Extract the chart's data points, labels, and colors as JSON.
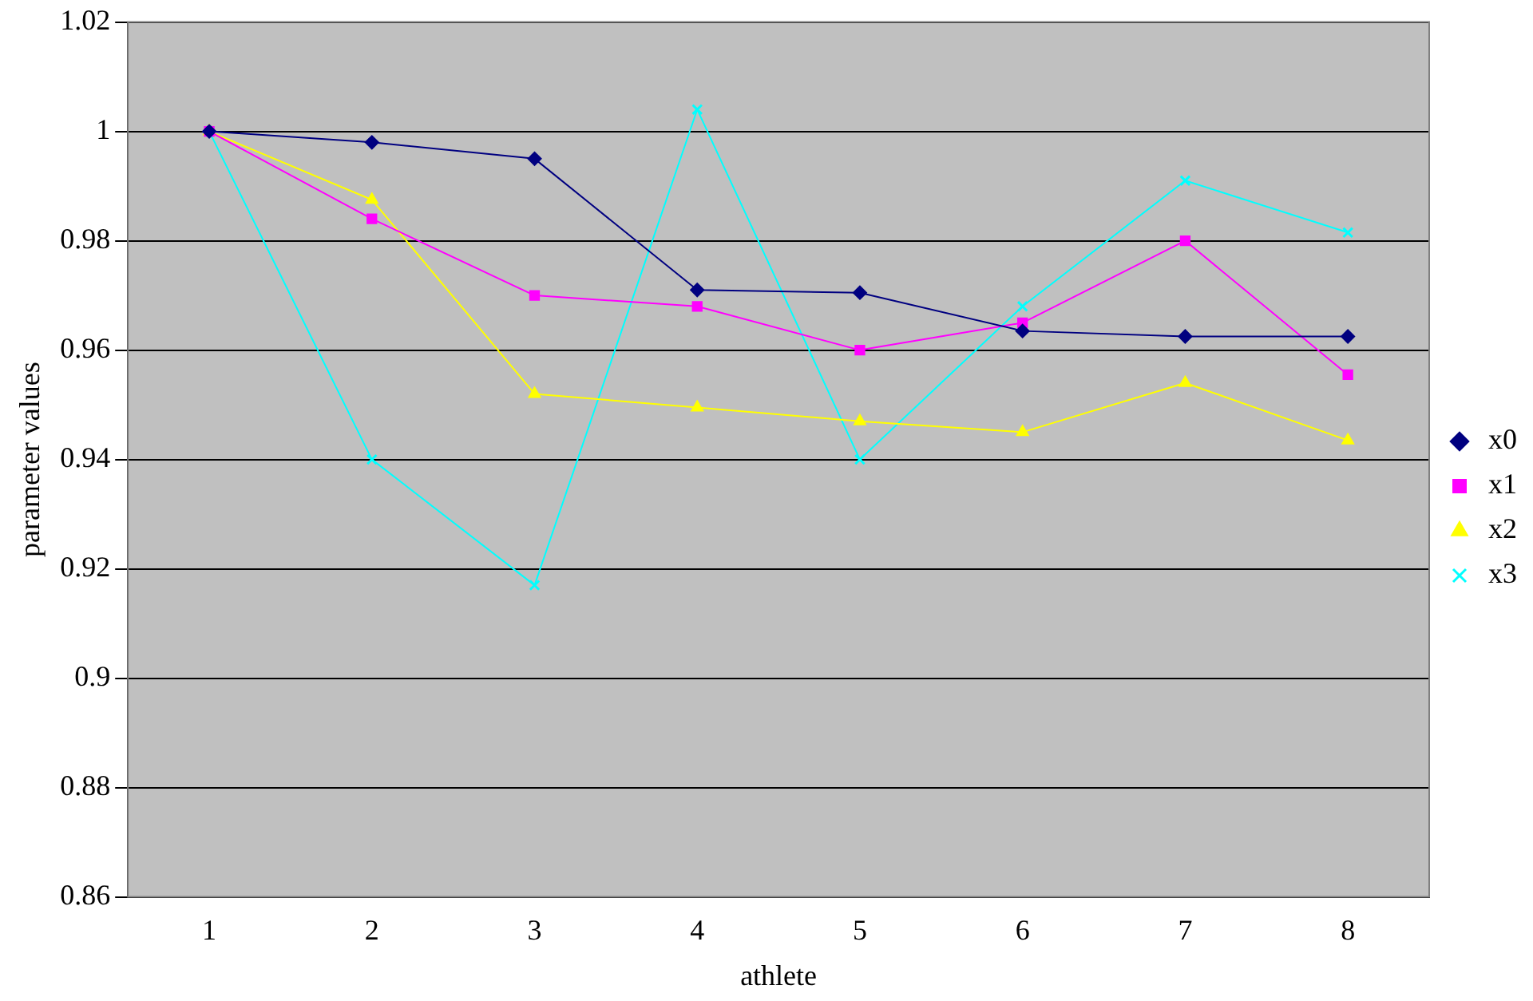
{
  "chart_data": {
    "type": "line",
    "xlabel": "athlete",
    "ylabel": "parameter values",
    "categories": [
      "1",
      "2",
      "3",
      "4",
      "5",
      "6",
      "7",
      "8"
    ],
    "series": [
      {
        "name": "x0",
        "color": "#000080",
        "marker": "diamond",
        "values": [
          1.0,
          0.998,
          0.995,
          0.971,
          0.9705,
          0.9635,
          0.9625,
          0.9625
        ]
      },
      {
        "name": "x1",
        "color": "#ff00ff",
        "marker": "square",
        "values": [
          1.0,
          0.984,
          0.97,
          0.968,
          0.96,
          0.965,
          0.98,
          0.9555
        ]
      },
      {
        "name": "x2",
        "color": "#ffff00",
        "marker": "triangle",
        "values": [
          1.0,
          0.9875,
          0.952,
          0.9495,
          0.947,
          0.945,
          0.954,
          0.9435
        ]
      },
      {
        "name": "x3",
        "color": "#00ffff",
        "marker": "cross",
        "values": [
          1.0,
          0.94,
          0.917,
          1.004,
          0.94,
          0.968,
          0.991,
          0.9815
        ]
      }
    ],
    "ylim": [
      0.86,
      1.02
    ],
    "yticks": [
      {
        "value": 0.86,
        "label": "0.86"
      },
      {
        "value": 0.88,
        "label": "0.88"
      },
      {
        "value": 0.9,
        "label": "0.9"
      },
      {
        "value": 0.92,
        "label": "0.92"
      },
      {
        "value": 0.94,
        "label": "0.94"
      },
      {
        "value": 0.96,
        "label": "0.96"
      },
      {
        "value": 0.98,
        "label": "0.98"
      },
      {
        "value": 1,
        "label": "1"
      },
      {
        "value": 1.02,
        "label": "1.02"
      }
    ],
    "grid": "y",
    "legend": "right"
  }
}
